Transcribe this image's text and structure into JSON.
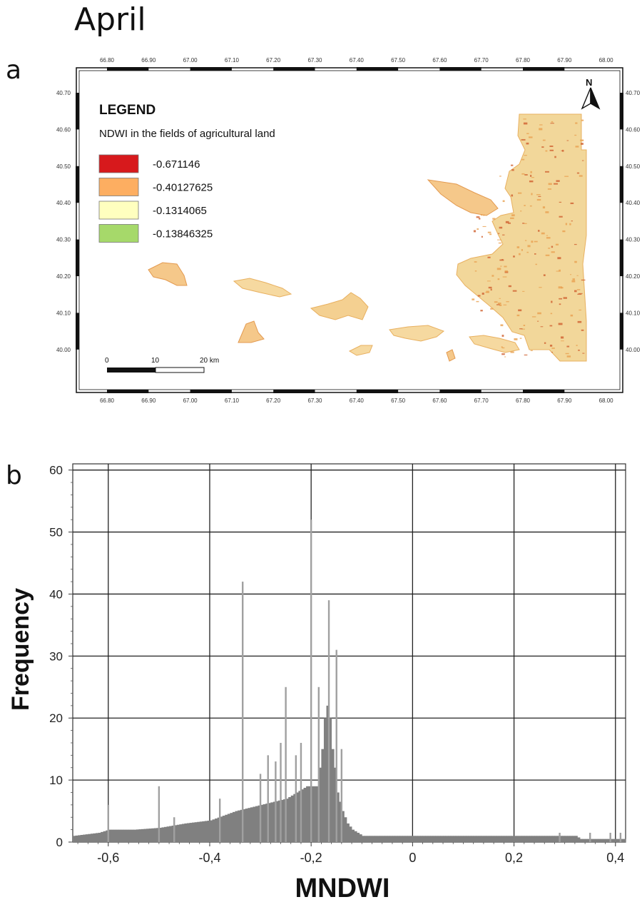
{
  "page_title": "April",
  "panel_a_label": "a",
  "panel_b_label": "b",
  "map": {
    "north_label": "N",
    "legend_title": "LEGEND",
    "legend_subtitle": "NDWI in the fields of agricultural land",
    "legend_items": [
      {
        "label": "-0.671146",
        "color": "#d7191c"
      },
      {
        "label": "-0.40127625",
        "color": "#fdae61"
      },
      {
        "label": "-0.1314065",
        "color": "#ffffbf"
      },
      {
        "label": "-0.13846325",
        "color": "#a6d96a"
      }
    ],
    "lon_ticks": [
      "66.80",
      "66.90",
      "67.00",
      "67.10",
      "67.20",
      "67.30",
      "67.40",
      "67.50",
      "67.60",
      "67.70",
      "67.80",
      "67.90",
      "68.00"
    ],
    "lat_ticks": [
      "40.70",
      "40.60",
      "40.50",
      "40.40",
      "40.30",
      "40.20",
      "40.10",
      "40.00"
    ],
    "scale_labels": [
      "0",
      "10",
      "20 km"
    ]
  },
  "chart_data": {
    "type": "bar",
    "xlabel": "MNDWI",
    "ylabel": "Frequency",
    "xlim": [
      -0.67,
      0.42
    ],
    "ylim": [
      0,
      61
    ],
    "x_ticks": [
      -0.6,
      -0.4,
      -0.2,
      0,
      0.2,
      0.4
    ],
    "x_tick_labels": [
      "-0,6",
      "-0,4",
      "-0,2",
      "0",
      "0,2",
      "0,4"
    ],
    "y_ticks": [
      0,
      10,
      20,
      30,
      40,
      50,
      60
    ],
    "y_tick_labels": [
      "0",
      "10",
      "20",
      "30",
      "40",
      "50",
      "60"
    ],
    "grid": true,
    "bar_color": "#808080",
    "spike_color": "#a0a0a0",
    "envelope": [
      [
        -0.67,
        1
      ],
      [
        -0.62,
        1.5
      ],
      [
        -0.6,
        2
      ],
      [
        -0.55,
        2
      ],
      [
        -0.5,
        2.3
      ],
      [
        -0.45,
        3
      ],
      [
        -0.4,
        3.5
      ],
      [
        -0.35,
        5
      ],
      [
        -0.3,
        6
      ],
      [
        -0.25,
        7
      ],
      [
        -0.21,
        9
      ],
      [
        -0.19,
        9
      ],
      [
        -0.18,
        15
      ],
      [
        -0.175,
        20
      ],
      [
        -0.17,
        22
      ],
      [
        -0.165,
        20
      ],
      [
        -0.16,
        15
      ],
      [
        -0.155,
        12
      ],
      [
        -0.15,
        8
      ],
      [
        -0.14,
        5
      ],
      [
        -0.13,
        3
      ],
      [
        -0.12,
        2
      ],
      [
        -0.11,
        1.5
      ],
      [
        -0.1,
        1
      ],
      [
        0.1,
        1
      ],
      [
        0.32,
        1
      ],
      [
        0.33,
        0.5
      ],
      [
        0.42,
        0.5
      ]
    ],
    "spikes": [
      [
        -0.6,
        6
      ],
      [
        -0.5,
        9
      ],
      [
        -0.47,
        4
      ],
      [
        -0.38,
        7
      ],
      [
        -0.335,
        42
      ],
      [
        -0.3,
        11
      ],
      [
        -0.285,
        14
      ],
      [
        -0.27,
        13
      ],
      [
        -0.26,
        16
      ],
      [
        -0.25,
        25
      ],
      [
        -0.23,
        14
      ],
      [
        -0.22,
        16
      ],
      [
        -0.2,
        52
      ],
      [
        -0.185,
        25
      ],
      [
        -0.165,
        39
      ],
      [
        -0.15,
        31
      ],
      [
        -0.14,
        15
      ],
      [
        0.29,
        1.5
      ],
      [
        0.35,
        1.5
      ],
      [
        0.39,
        1.5
      ],
      [
        0.41,
        1.5
      ]
    ]
  }
}
